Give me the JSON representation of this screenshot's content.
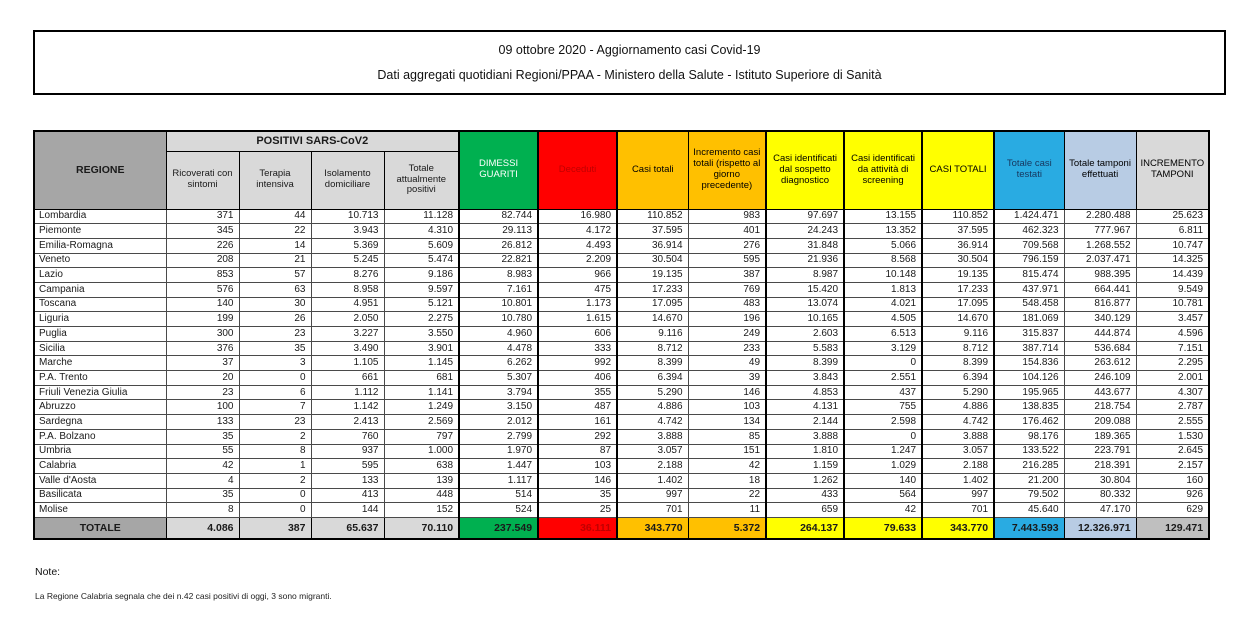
{
  "title": {
    "line1": "09 ottobre 2020 - Aggiornamento casi Covid-19",
    "line2": "Dati aggregati quotidiani Regioni/PPAA - Ministero della Salute - Istituto Superiore di Sanità"
  },
  "table": {
    "header": {
      "regione": "REGIONE",
      "group_positivi": "POSITIVI SARS-CoV2",
      "cols": [
        "Ricoverati con sintomi",
        "Terapia intensiva",
        "Isolamento domiciliare",
        "Totale attualmente positivi",
        "DIMESSI GUARITI",
        "Deceduti",
        "Casi totali",
        "Incremento casi totali (rispetto al giorno precedente)",
        "Casi identificati dal sospetto diagnostico",
        "Casi identificati da attività di screening",
        "CASI TOTALI",
        "Totale casi testati",
        "Totale tamponi effettuati",
        "INCREMENTO TAMPONI"
      ]
    },
    "rows": [
      {
        "region": "Lombardia",
        "values": [
          "371",
          "44",
          "10.713",
          "11.128",
          "82.744",
          "16.980",
          "110.852",
          "983",
          "97.697",
          "13.155",
          "110.852",
          "1.424.471",
          "2.280.488",
          "25.623"
        ]
      },
      {
        "region": "Piemonte",
        "values": [
          "345",
          "22",
          "3.943",
          "4.310",
          "29.113",
          "4.172",
          "37.595",
          "401",
          "24.243",
          "13.352",
          "37.595",
          "462.323",
          "777.967",
          "6.811"
        ]
      },
      {
        "region": "Emilia-Romagna",
        "values": [
          "226",
          "14",
          "5.369",
          "5.609",
          "26.812",
          "4.493",
          "36.914",
          "276",
          "31.848",
          "5.066",
          "36.914",
          "709.568",
          "1.268.552",
          "10.747"
        ]
      },
      {
        "region": "Veneto",
        "values": [
          "208",
          "21",
          "5.245",
          "5.474",
          "22.821",
          "2.209",
          "30.504",
          "595",
          "21.936",
          "8.568",
          "30.504",
          "796.159",
          "2.037.471",
          "14.325"
        ]
      },
      {
        "region": "Lazio",
        "values": [
          "853",
          "57",
          "8.276",
          "9.186",
          "8.983",
          "966",
          "19.135",
          "387",
          "8.987",
          "10.148",
          "19.135",
          "815.474",
          "988.395",
          "14.439"
        ]
      },
      {
        "region": "Campania",
        "values": [
          "576",
          "63",
          "8.958",
          "9.597",
          "7.161",
          "475",
          "17.233",
          "769",
          "15.420",
          "1.813",
          "17.233",
          "437.971",
          "664.441",
          "9.549"
        ]
      },
      {
        "region": "Toscana",
        "values": [
          "140",
          "30",
          "4.951",
          "5.121",
          "10.801",
          "1.173",
          "17.095",
          "483",
          "13.074",
          "4.021",
          "17.095",
          "548.458",
          "816.877",
          "10.781"
        ]
      },
      {
        "region": "Liguria",
        "values": [
          "199",
          "26",
          "2.050",
          "2.275",
          "10.780",
          "1.615",
          "14.670",
          "196",
          "10.165",
          "4.505",
          "14.670",
          "181.069",
          "340.129",
          "3.457"
        ]
      },
      {
        "region": "Puglia",
        "values": [
          "300",
          "23",
          "3.227",
          "3.550",
          "4.960",
          "606",
          "9.116",
          "249",
          "2.603",
          "6.513",
          "9.116",
          "315.837",
          "444.874",
          "4.596"
        ]
      },
      {
        "region": "Sicilia",
        "values": [
          "376",
          "35",
          "3.490",
          "3.901",
          "4.478",
          "333",
          "8.712",
          "233",
          "5.583",
          "3.129",
          "8.712",
          "387.714",
          "536.684",
          "7.151"
        ]
      },
      {
        "region": "Marche",
        "values": [
          "37",
          "3",
          "1.105",
          "1.145",
          "6.262",
          "992",
          "8.399",
          "49",
          "8.399",
          "0",
          "8.399",
          "154.836",
          "263.612",
          "2.295"
        ]
      },
      {
        "region": "P.A. Trento",
        "values": [
          "20",
          "0",
          "661",
          "681",
          "5.307",
          "406",
          "6.394",
          "39",
          "3.843",
          "2.551",
          "6.394",
          "104.126",
          "246.109",
          "2.001"
        ]
      },
      {
        "region": "Friuli Venezia Giulia",
        "values": [
          "23",
          "6",
          "1.112",
          "1.141",
          "3.794",
          "355",
          "5.290",
          "146",
          "4.853",
          "437",
          "5.290",
          "195.965",
          "443.677",
          "4.307"
        ]
      },
      {
        "region": "Abruzzo",
        "values": [
          "100",
          "7",
          "1.142",
          "1.249",
          "3.150",
          "487",
          "4.886",
          "103",
          "4.131",
          "755",
          "4.886",
          "138.835",
          "218.754",
          "2.787"
        ]
      },
      {
        "region": "Sardegna",
        "values": [
          "133",
          "23",
          "2.413",
          "2.569",
          "2.012",
          "161",
          "4.742",
          "134",
          "2.144",
          "2.598",
          "4.742",
          "176.462",
          "209.088",
          "2.555"
        ]
      },
      {
        "region": "P.A. Bolzano",
        "values": [
          "35",
          "2",
          "760",
          "797",
          "2.799",
          "292",
          "3.888",
          "85",
          "3.888",
          "0",
          "3.888",
          "98.176",
          "189.365",
          "1.530"
        ]
      },
      {
        "region": "Umbria",
        "values": [
          "55",
          "8",
          "937",
          "1.000",
          "1.970",
          "87",
          "3.057",
          "151",
          "1.810",
          "1.247",
          "3.057",
          "133.522",
          "223.791",
          "2.645"
        ]
      },
      {
        "region": "Calabria",
        "values": [
          "42",
          "1",
          "595",
          "638",
          "1.447",
          "103",
          "2.188",
          "42",
          "1.159",
          "1.029",
          "2.188",
          "216.285",
          "218.391",
          "2.157"
        ]
      },
      {
        "region": "Valle d'Aosta",
        "values": [
          "4",
          "2",
          "133",
          "139",
          "1.117",
          "146",
          "1.402",
          "18",
          "1.262",
          "140",
          "1.402",
          "21.200",
          "30.804",
          "160"
        ]
      },
      {
        "region": "Basilicata",
        "values": [
          "35",
          "0",
          "413",
          "448",
          "514",
          "35",
          "997",
          "22",
          "433",
          "564",
          "997",
          "79.502",
          "80.332",
          "926"
        ]
      },
      {
        "region": "Molise",
        "values": [
          "8",
          "0",
          "144",
          "152",
          "524",
          "25",
          "701",
          "11",
          "659",
          "42",
          "701",
          "45.640",
          "47.170",
          "629"
        ]
      }
    ],
    "total": {
      "region": "TOTALE",
      "values": [
        "4.086",
        "387",
        "65.637",
        "70.110",
        "237.549",
        "36.111",
        "343.770",
        "5.372",
        "264.137",
        "79.633",
        "343.770",
        "7.443.593",
        "12.326.971",
        "129.471"
      ]
    }
  },
  "notes": {
    "label": "Note:",
    "text": "La Regione Calabria segnala che dei n.42  casi positivi di oggi, 3 sono migranti."
  },
  "colors": {
    "header_gray": "#a6a6a6",
    "subheader_gray": "#d9d9d9",
    "green": "#00b050",
    "red": "#ff0000",
    "red_text": "#c00000",
    "orange": "#ffc000",
    "yellow": "#ffff00",
    "blue": "#29abe2",
    "light_blue": "#b8cce4",
    "total_gray": "#bfbfbf"
  }
}
